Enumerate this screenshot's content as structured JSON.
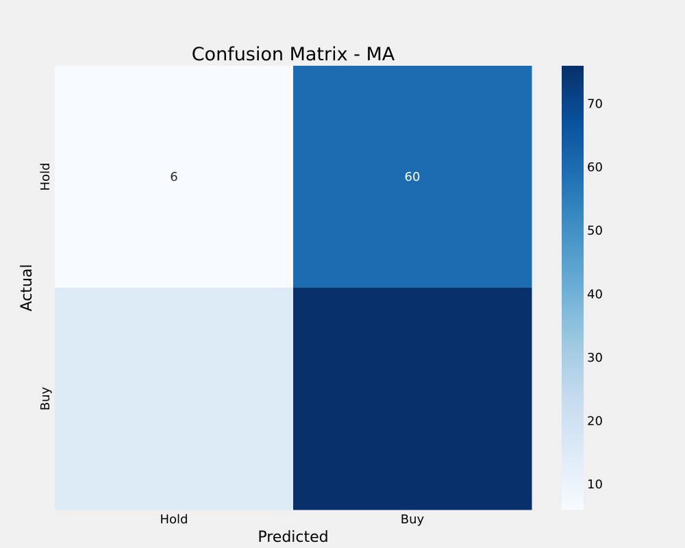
{
  "chart_data": {
    "type": "heatmap",
    "title": "Confusion Matrix - MA",
    "xlabel": "Predicted",
    "ylabel": "Actual",
    "x_categories": [
      "Hold",
      "Buy"
    ],
    "y_categories": [
      "Hold",
      "Buy"
    ],
    "values": [
      [
        6,
        60
      ],
      [
        15,
        76
      ]
    ],
    "cell_labels": [
      [
        "6",
        "60"
      ],
      [
        "",
        ""
      ]
    ],
    "colorbar": {
      "vmin": 6,
      "vmax": 76,
      "ticks": [
        10,
        20,
        30,
        40,
        50,
        60,
        70
      ],
      "colormap": "Blues"
    },
    "background_color": "#f0f0f0",
    "grid": false
  }
}
